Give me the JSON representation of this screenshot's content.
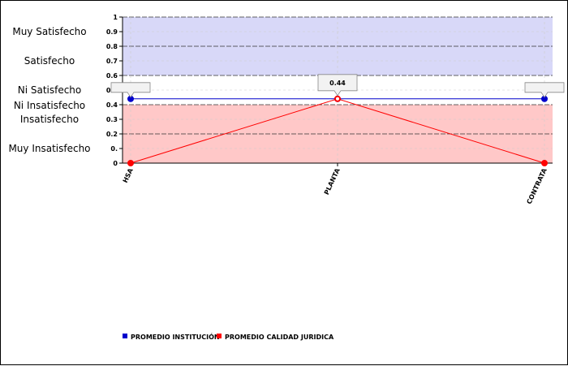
{
  "chart_data": {
    "type": "line",
    "title": "",
    "xlabel": "",
    "ylabel": "",
    "categories": [
      "HSA",
      "PLANTA",
      "CONTRATA"
    ],
    "ylim": [
      0,
      1
    ],
    "yticks": [
      "0",
      "0.",
      "0.2",
      "0.3",
      "0.4",
      "0.5",
      "0.6",
      "0.7",
      "0.8",
      "0.9",
      "1"
    ],
    "bands": [
      {
        "label": "Muy Satisfecho",
        "from": 0.8,
        "to": 1.0,
        "color": "#d8d8f8"
      },
      {
        "label": "Satisfecho",
        "from": 0.6,
        "to": 0.8,
        "color": "#d8d8f8"
      },
      {
        "label": "Ni Satisfecho",
        "label2": "Ni Insatisfecho",
        "from": 0.4,
        "to": 0.6,
        "color": "#ffffff"
      },
      {
        "label": "Insatisfecho",
        "from": 0.2,
        "to": 0.4,
        "color": "#ffc8c8"
      },
      {
        "label": "Muy Insatisfecho",
        "from": 0.0,
        "to": 0.2,
        "color": "#ffc8c8"
      }
    ],
    "series": [
      {
        "name": "PROMEDIO INSTITUCIÓN",
        "color": "#0000cc",
        "values": [
          0.44,
          0.44,
          0.44
        ]
      },
      {
        "name": "PROMEDIO CALIDAD JURIDICA",
        "color": "#ff0000",
        "values": [
          0.0,
          0.44,
          0.0
        ]
      }
    ],
    "tooltips": [
      {
        "category_index": 0,
        "text": ""
      },
      {
        "category_index": 1,
        "text": "0.44"
      },
      {
        "category_index": 2,
        "text": ""
      }
    ],
    "grid": true,
    "legend_position": "bottom-left"
  }
}
